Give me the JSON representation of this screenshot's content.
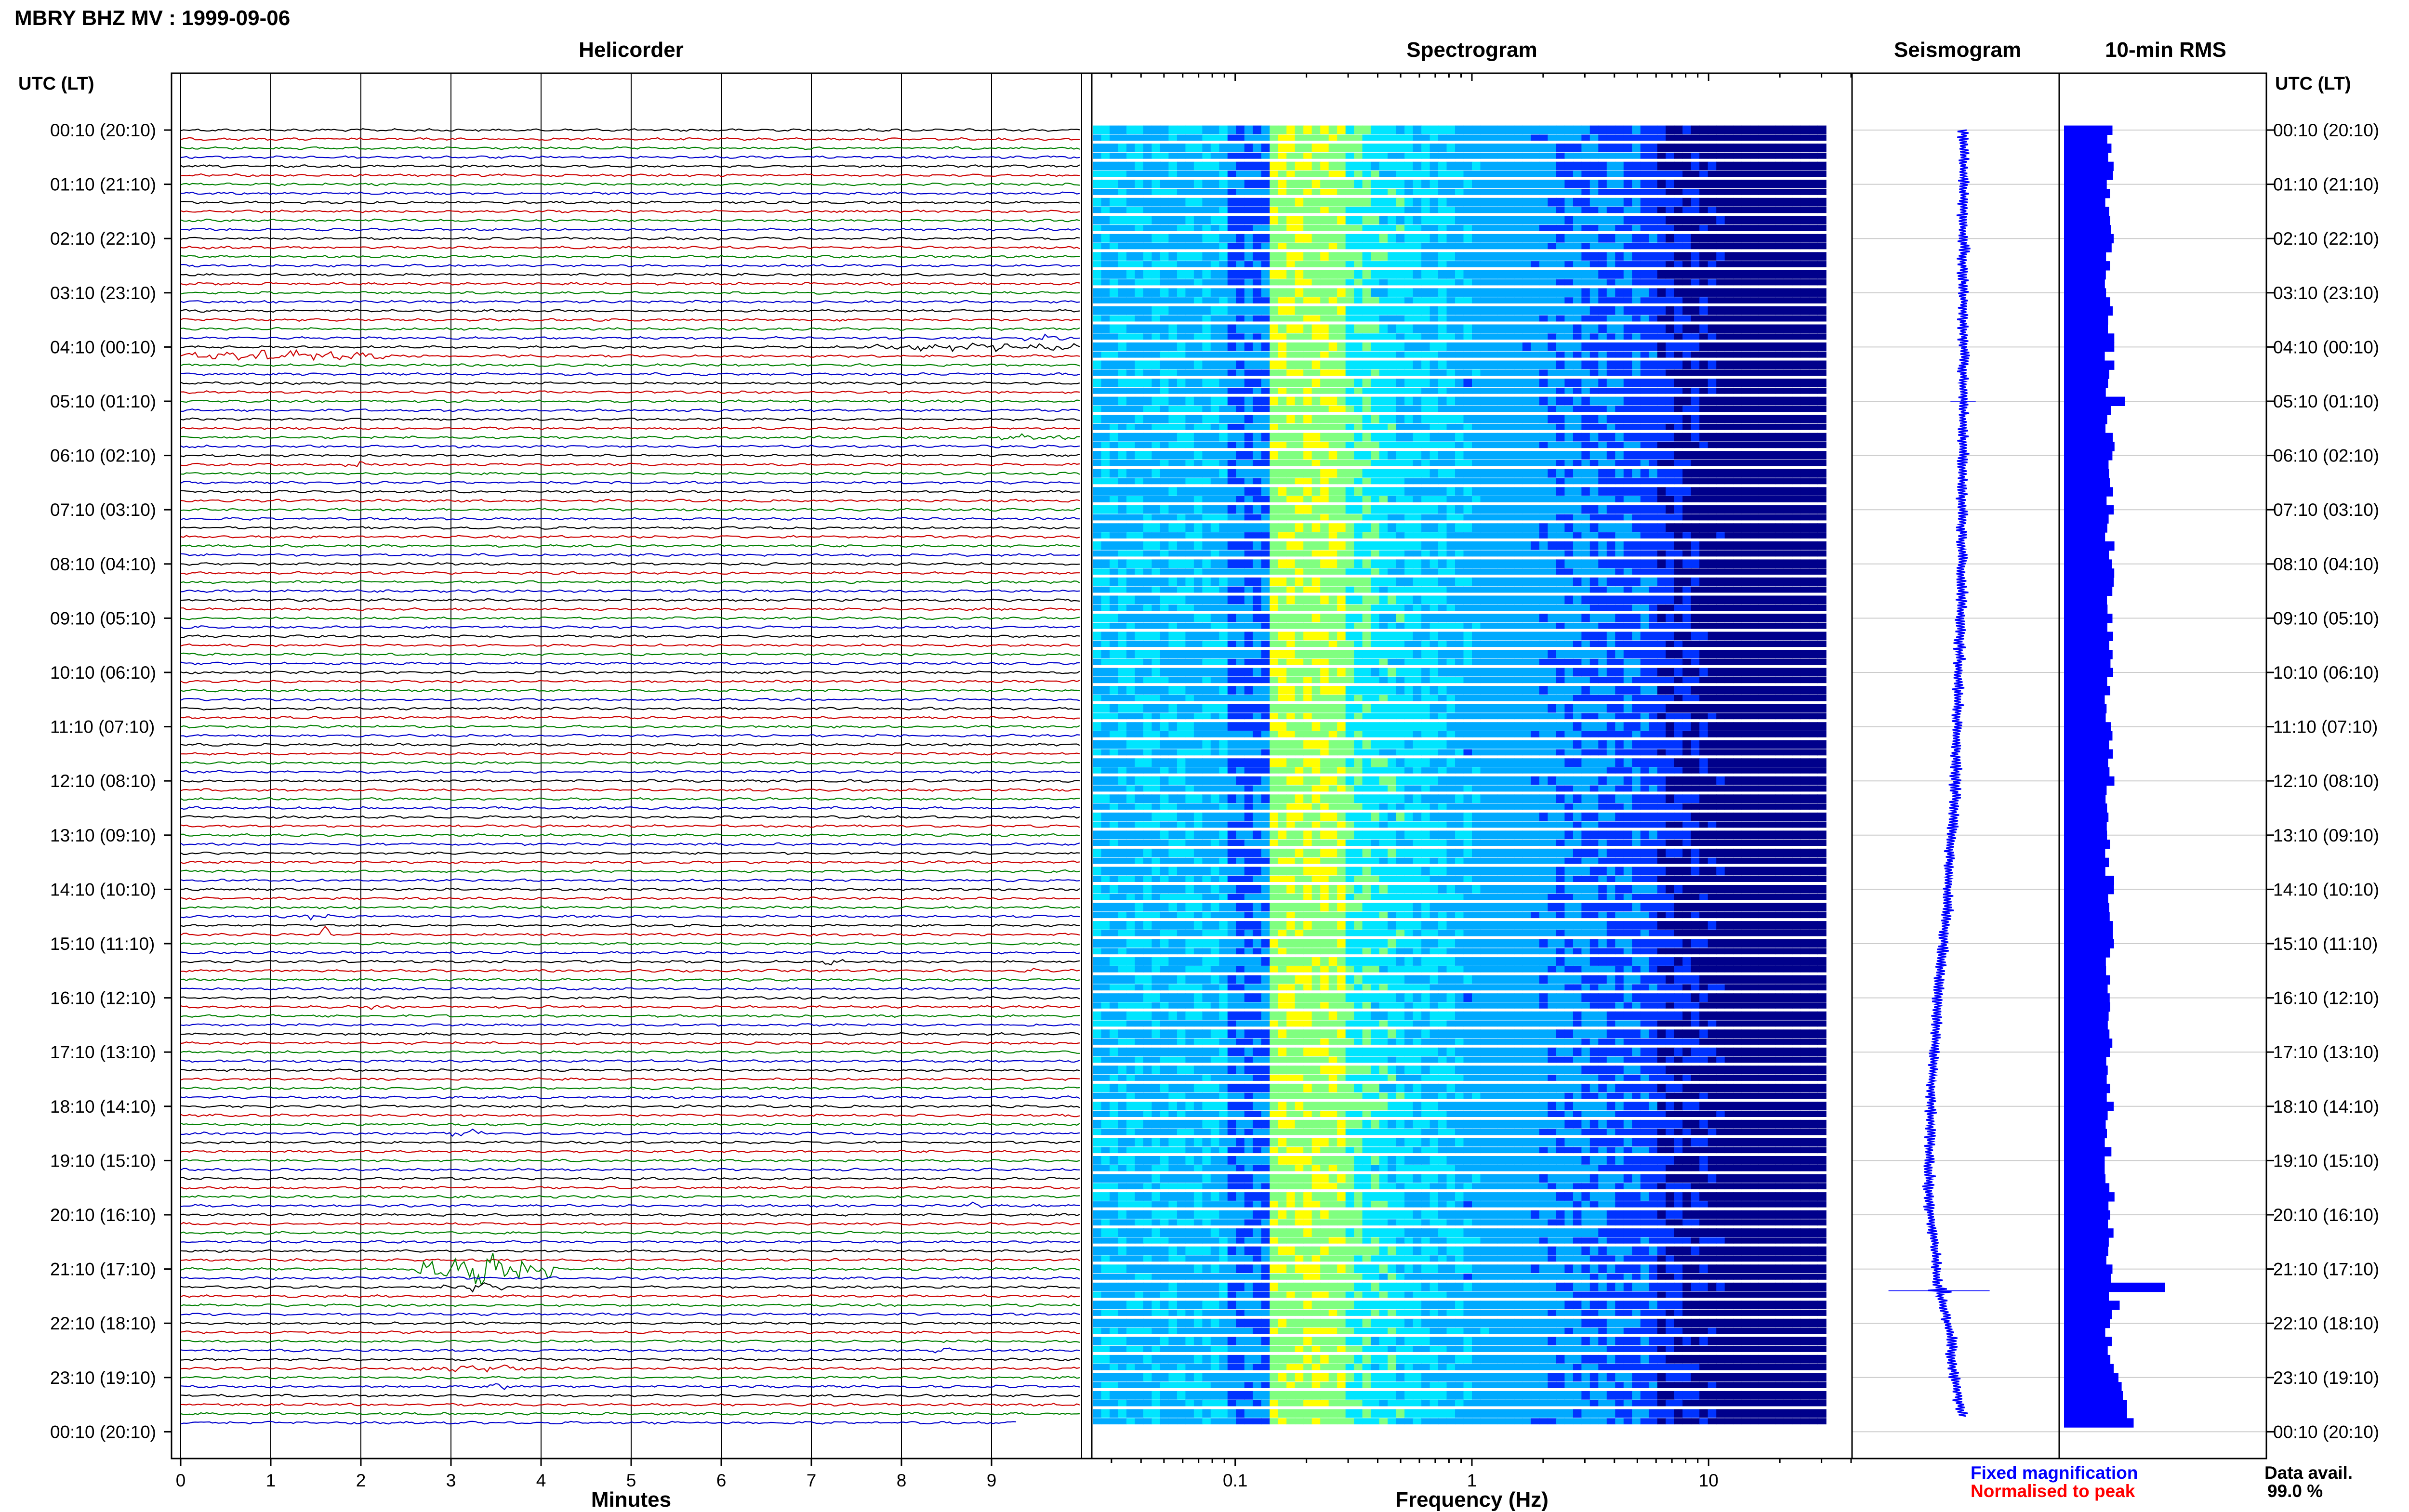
{
  "header": {
    "title": "MBRY BHZ MV : 1999-09-06",
    "utc_lt_label": "UTC (LT)"
  },
  "panels": {
    "helicorder_title": "Helicorder",
    "spectrogram_title": "Spectrogram",
    "seismogram_title": "Seismogram",
    "rms_title": "10-min RMS"
  },
  "row_labels": [
    "00:10 (20:10)",
    "01:10 (21:10)",
    "02:10 (22:10)",
    "03:10 (23:10)",
    "04:10 (00:10)",
    "05:10 (01:10)",
    "06:10 (02:10)",
    "07:10 (03:10)",
    "08:10 (04:10)",
    "09:10 (05:10)",
    "10:10 (06:10)",
    "11:10 (07:10)",
    "12:10 (08:10)",
    "13:10 (09:10)",
    "14:10 (10:10)",
    "15:10 (11:10)",
    "16:10 (12:10)",
    "17:10 (13:10)",
    "18:10 (14:10)",
    "19:10 (15:10)",
    "20:10 (16:10)",
    "21:10 (17:10)",
    "22:10 (18:10)",
    "23:10 (19:10)",
    "00:10 (20:10)"
  ],
  "legend": {
    "fixed": "Fixed magnification",
    "normalised": "Normalised to peak",
    "fixed_color": "#0000ff",
    "normalised_color": "#ff0000"
  },
  "data_avail": {
    "label": "Data avail.",
    "value": "99.0 %"
  },
  "chart_data": [
    {
      "type": "line",
      "title": "Helicorder",
      "xlabel": "Minutes",
      "x_ticks": [
        "0",
        "1",
        "2",
        "3",
        "4",
        "5",
        "6",
        "7",
        "8",
        "9"
      ],
      "xlim": [
        0,
        10
      ],
      "rows": 144,
      "trace_colors": [
        "#000000",
        "#cc0000",
        "#008000",
        "#0000cc"
      ],
      "events": [
        {
          "row": 25,
          "start": 0.0,
          "end": 2.3,
          "amp": 2.2
        },
        {
          "row": 24,
          "start": 7.6,
          "end": 10.0,
          "amp": 2.0
        },
        {
          "row": 23,
          "start": 9.3,
          "end": 9.8,
          "amp": 1.6
        },
        {
          "row": 34,
          "start": 8.8,
          "end": 10.0,
          "amp": 1.3
        },
        {
          "row": 37,
          "start": 1.8,
          "end": 2.1,
          "amp": 1.4
        },
        {
          "row": 87,
          "start": 1.3,
          "end": 1.7,
          "amp": 1.6
        },
        {
          "row": 89,
          "start": 1.55,
          "end": 1.65,
          "amp": 4.0
        },
        {
          "row": 92,
          "start": 7.1,
          "end": 7.4,
          "amp": 1.3
        },
        {
          "row": 93,
          "start": 9.4,
          "end": 9.5,
          "amp": 1.6
        },
        {
          "row": 97,
          "start": 2.0,
          "end": 2.2,
          "amp": 1.4
        },
        {
          "row": 111,
          "start": 3.0,
          "end": 3.4,
          "amp": 1.8
        },
        {
          "row": 119,
          "start": 8.7,
          "end": 8.9,
          "amp": 1.4
        },
        {
          "row": 126,
          "start": 2.6,
          "end": 4.2,
          "amp": 6.0
        },
        {
          "row": 128,
          "start": 2.9,
          "end": 3.6,
          "amp": 2.0
        },
        {
          "row": 135,
          "start": 8.3,
          "end": 8.6,
          "amp": 1.3
        },
        {
          "row": 137,
          "start": 2.5,
          "end": 4.0,
          "amp": 1.5
        },
        {
          "row": 139,
          "start": 3.4,
          "end": 3.7,
          "amp": 1.4
        }
      ]
    },
    {
      "type": "heatmap",
      "title": "Spectrogram",
      "xlabel": "Frequency (Hz)",
      "x_scale": "log",
      "xlim": [
        0.025,
        40
      ],
      "x_tick_labels": [
        {
          "value": 0.1,
          "label": "0.1"
        },
        {
          "value": 1,
          "label": "1"
        },
        {
          "value": 10,
          "label": "10"
        }
      ],
      "rows": 144,
      "peak_band_hz": [
        0.14,
        0.3
      ],
      "colormap": [
        "#00008b",
        "#0033ff",
        "#00aaff",
        "#00e5ff",
        "#80ff80",
        "#ffff00"
      ]
    },
    {
      "type": "line",
      "title": "Seismogram",
      "description_values": "long-period drift of a 24-hour trace",
      "offset_points": [
        {
          "hour": 0.0,
          "offset": 0.0
        },
        {
          "hour": 4.0,
          "offset": 0.0
        },
        {
          "hour": 8.0,
          "offset": -0.02
        },
        {
          "hour": 12.0,
          "offset": -0.1
        },
        {
          "hour": 14.0,
          "offset": -0.2
        },
        {
          "hour": 16.0,
          "offset": -0.33
        },
        {
          "hour": 18.0,
          "offset": -0.42
        },
        {
          "hour": 19.5,
          "offset": -0.45
        },
        {
          "hour": 21.0,
          "offset": -0.35
        },
        {
          "hour": 22.5,
          "offset": -0.15
        },
        {
          "hour": 24.0,
          "offset": 0.0
        }
      ],
      "spikes": [
        {
          "hour": 5.0,
          "amp": 0.25
        },
        {
          "hour": 21.4,
          "amp": 1.0
        }
      ]
    },
    {
      "type": "bar",
      "title": "10-min RMS",
      "orientation": "horizontal",
      "bars": 144,
      "baseline": 0.45,
      "variation": 0.05,
      "late_rise_start_hour": 22.5,
      "late_rise_max": 0.7,
      "peaks": [
        {
          "hour": 5.0,
          "value": 0.6
        },
        {
          "hour": 21.4,
          "value": 1.0
        },
        {
          "hour": 21.6,
          "value": 0.55
        }
      ]
    }
  ]
}
